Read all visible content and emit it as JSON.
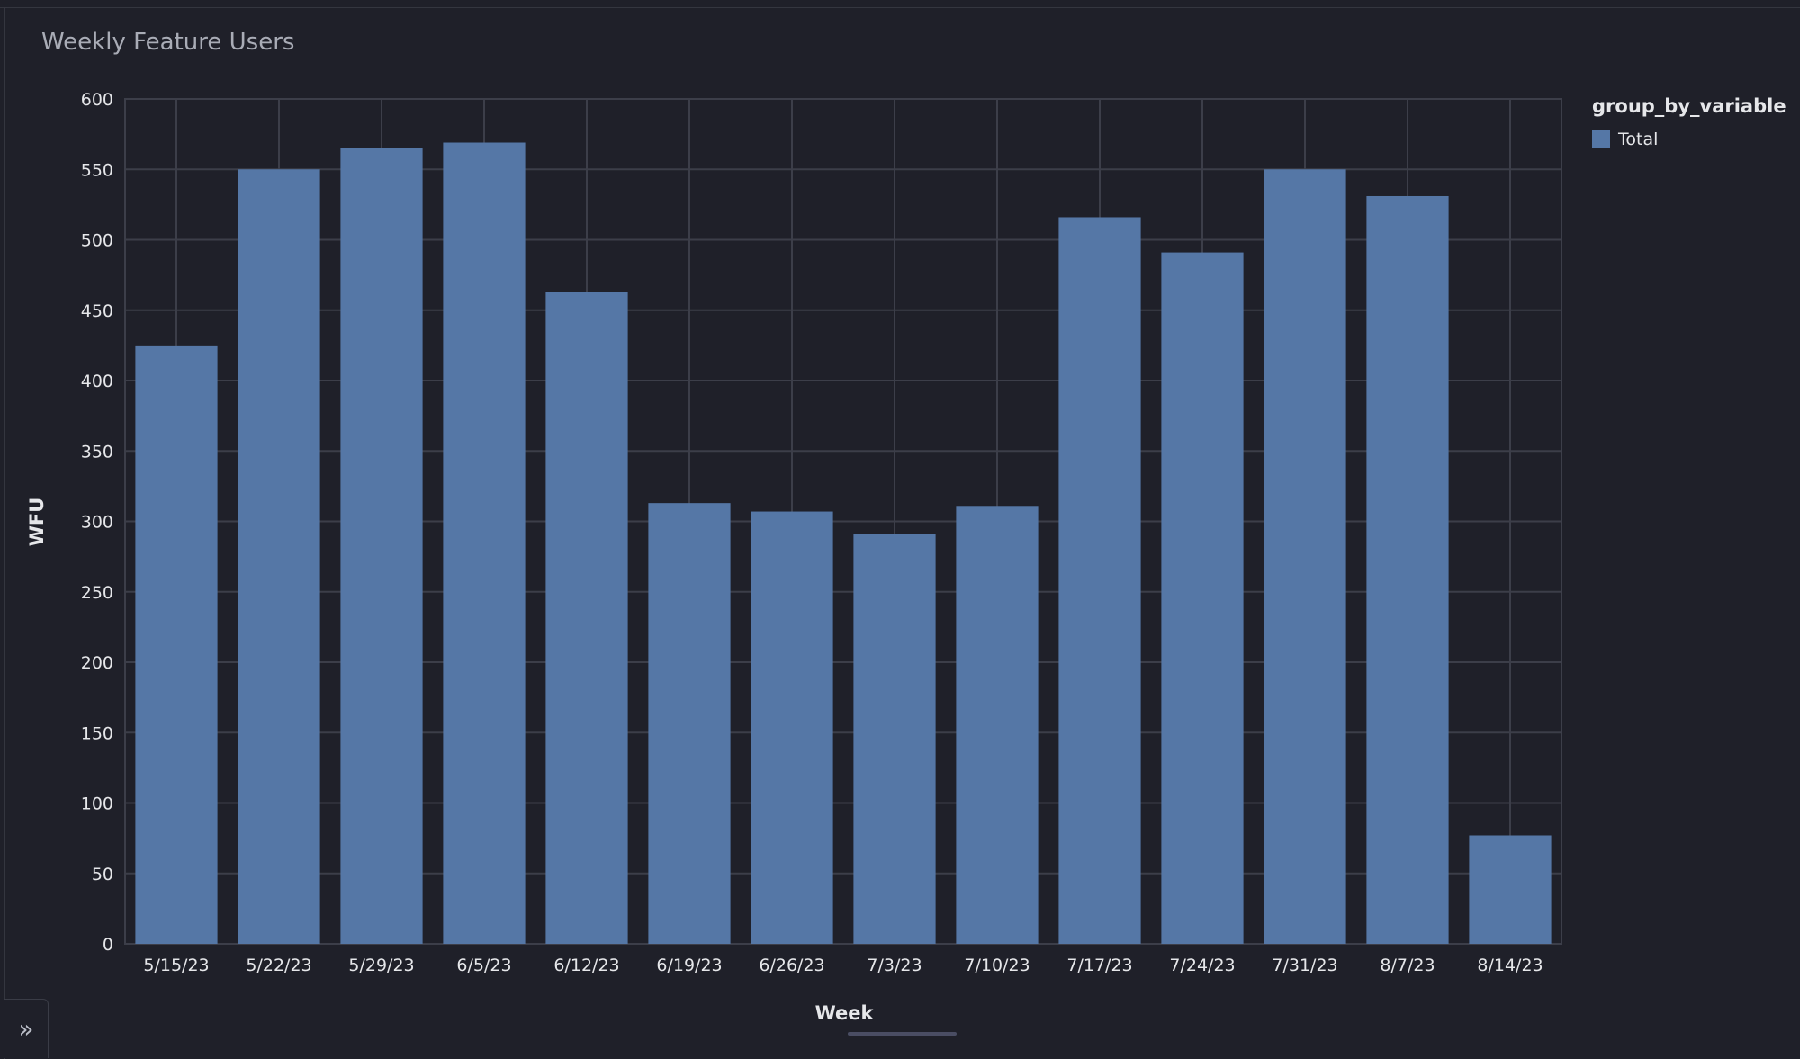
{
  "panel": {
    "title": "Weekly Feature Users",
    "expand_icon": "double-chevron-right-icon"
  },
  "legend": {
    "title": "group_by_variable",
    "items": [
      {
        "label": "Total",
        "color": "#5577a6"
      }
    ]
  },
  "chart_data": {
    "type": "bar",
    "xlabel": "Week",
    "ylabel": "WFU",
    "ylim": [
      0,
      600
    ],
    "yticks": [
      0,
      50,
      100,
      150,
      200,
      250,
      300,
      350,
      400,
      450,
      500,
      550,
      600
    ],
    "categories": [
      "5/15/23",
      "5/22/23",
      "5/29/23",
      "6/5/23",
      "6/12/23",
      "6/19/23",
      "6/26/23",
      "7/3/23",
      "7/10/23",
      "7/17/23",
      "7/24/23",
      "7/31/23",
      "8/7/23",
      "8/14/23"
    ],
    "series": [
      {
        "name": "Total",
        "color": "#5577a6",
        "values": [
          425,
          550,
          565,
          569,
          463,
          313,
          307,
          291,
          311,
          516,
          491,
          550,
          531,
          77
        ]
      }
    ],
    "grid": true,
    "legend_position": "top-right"
  }
}
